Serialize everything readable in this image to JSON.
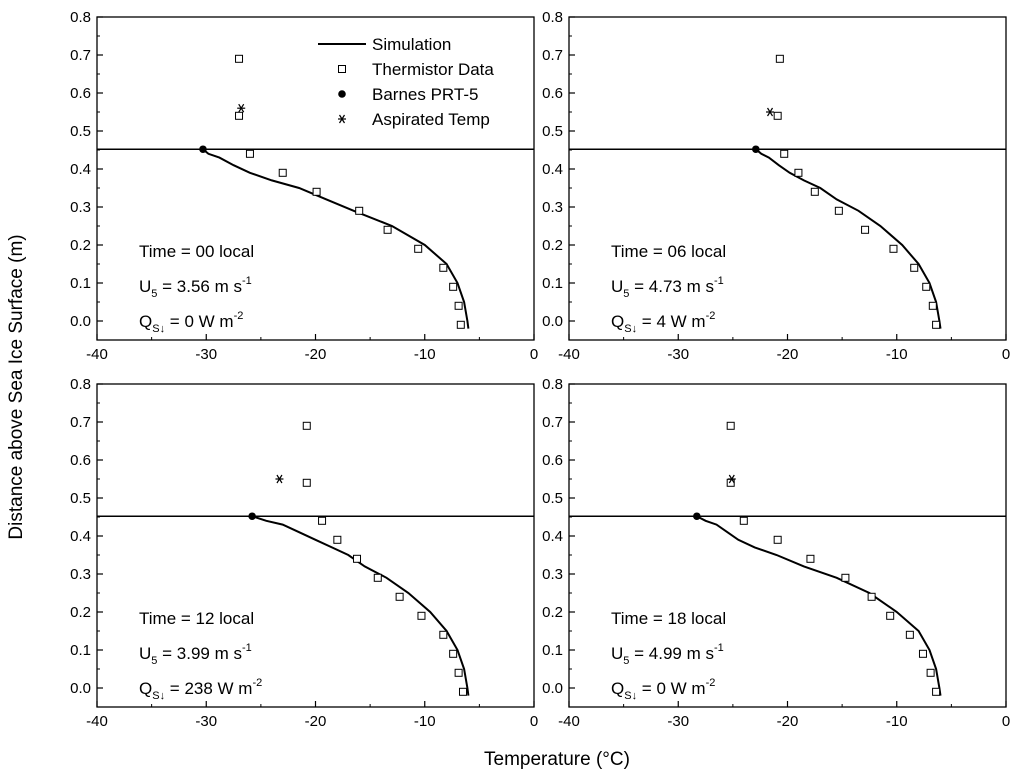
{
  "figure": {
    "xlabel": "Temperature (°C)",
    "ylabel": "Distance above Sea Ice Surface (m)"
  },
  "legend": {
    "position": "top-right of upper-left panel",
    "items": [
      {
        "label": "Simulation",
        "marker": "line"
      },
      {
        "label": "Thermistor Data",
        "marker": "open-square"
      },
      {
        "label": "Barnes PRT-5",
        "marker": "filled-circle"
      },
      {
        "label": "Aspirated Temp",
        "marker": "asterisk"
      }
    ]
  },
  "chart_data": [
    {
      "type": "scatter",
      "panel": "upper-left",
      "xlim": [
        -40,
        0
      ],
      "ylim": [
        -0.05,
        0.8
      ],
      "xticks": [
        -40,
        -30,
        -20,
        -10,
        0
      ],
      "xtick_labels": [
        "-40",
        "-30",
        "-20",
        "-10",
        "0"
      ],
      "yticks": [
        0.0,
        0.1,
        0.2,
        0.3,
        0.4,
        0.5,
        0.6,
        0.7,
        0.8
      ],
      "ytick_labels": [
        "0.0",
        "0.1",
        "0.2",
        "0.3",
        "0.4",
        "0.5",
        "0.6",
        "0.7",
        "0.8"
      ],
      "surface_line_y": 0.452,
      "annotation": {
        "time": "Time = 00 local",
        "u_value": "= 3.56 m s",
        "u_exp": "-1",
        "q_value": "= 0 W m",
        "q_exp": "-2"
      },
      "series": [
        {
          "name": "Simulation",
          "x": [
            -6.0,
            -6.1,
            -6.4,
            -7.0,
            -8.0,
            -10.0,
            -13.0,
            -16.5,
            -19.0,
            -21.5,
            -24.0,
            -26.0,
            -27.5,
            -28.8,
            -29.8,
            -30.3
          ],
          "y": [
            -0.02,
            0.0,
            0.05,
            0.1,
            0.15,
            0.2,
            0.25,
            0.29,
            0.32,
            0.35,
            0.37,
            0.39,
            0.41,
            0.43,
            0.44,
            0.452
          ]
        },
        {
          "name": "Thermistor Data",
          "x": [
            -6.7,
            -6.9,
            -7.4,
            -8.3,
            -10.6,
            -13.4,
            -16.0,
            -19.9,
            -23.0,
            -26.0,
            -27.0,
            -27.0
          ],
          "y": [
            -0.01,
            0.04,
            0.09,
            0.14,
            0.19,
            0.24,
            0.29,
            0.34,
            0.39,
            0.44,
            0.54,
            0.69
          ]
        },
        {
          "name": "Barnes PRT-5",
          "x": [
            -30.3
          ],
          "y": [
            0.452
          ]
        },
        {
          "name": "Aspirated Temp",
          "x": [
            -26.8
          ],
          "y": [
            0.56
          ]
        }
      ]
    },
    {
      "type": "scatter",
      "panel": "upper-right",
      "xlim": [
        -40,
        0
      ],
      "ylim": [
        -0.05,
        0.8
      ],
      "xticks": [
        -40,
        -30,
        -20,
        -10,
        0
      ],
      "xtick_labels": [
        "-40",
        "-30",
        "-20",
        "-10",
        "0"
      ],
      "yticks": [
        0.0,
        0.1,
        0.2,
        0.3,
        0.4,
        0.5,
        0.6,
        0.7,
        0.8
      ],
      "ytick_labels": [
        "0.0",
        "0.1",
        "0.2",
        "0.3",
        "0.4",
        "0.5",
        "0.6",
        "0.7",
        "0.8"
      ],
      "surface_line_y": 0.452,
      "annotation": {
        "time": "Time = 06 local",
        "u_value": "= 4.73 m s",
        "u_exp": "-1",
        "q_value": "= 4 W m",
        "q_exp": "-2"
      },
      "series": [
        {
          "name": "Simulation",
          "x": [
            -6.0,
            -6.1,
            -6.4,
            -7.0,
            -8.0,
            -9.5,
            -11.5,
            -13.5,
            -15.5,
            -17.0,
            -18.5,
            -19.8,
            -20.8,
            -21.7,
            -22.4,
            -22.9
          ],
          "y": [
            -0.02,
            0.0,
            0.05,
            0.1,
            0.15,
            0.2,
            0.25,
            0.29,
            0.32,
            0.35,
            0.37,
            0.39,
            0.41,
            0.43,
            0.44,
            0.452
          ]
        },
        {
          "name": "Thermistor Data",
          "x": [
            -6.4,
            -6.7,
            -7.3,
            -8.4,
            -10.3,
            -12.9,
            -15.3,
            -17.5,
            -19.0,
            -20.3,
            -20.9,
            -20.7
          ],
          "y": [
            -0.01,
            0.04,
            0.09,
            0.14,
            0.19,
            0.24,
            0.29,
            0.34,
            0.39,
            0.44,
            0.54,
            0.69
          ]
        },
        {
          "name": "Barnes PRT-5",
          "x": [
            -22.9
          ],
          "y": [
            0.452
          ]
        },
        {
          "name": "Aspirated Temp",
          "x": [
            -21.6
          ],
          "y": [
            0.55
          ]
        }
      ]
    },
    {
      "type": "scatter",
      "panel": "lower-left",
      "xlim": [
        -40,
        0
      ],
      "ylim": [
        -0.05,
        0.8
      ],
      "xticks": [
        -40,
        -30,
        -20,
        -10,
        0
      ],
      "xtick_labels": [
        "-40",
        "-30",
        "-20",
        "-10",
        "0"
      ],
      "yticks": [
        0.0,
        0.1,
        0.2,
        0.3,
        0.4,
        0.5,
        0.6,
        0.7,
        0.8
      ],
      "ytick_labels": [
        "0.0",
        "0.1",
        "0.2",
        "0.3",
        "0.4",
        "0.5",
        "0.6",
        "0.7",
        "0.8"
      ],
      "surface_line_y": 0.452,
      "annotation": {
        "time": "Time = 12 local",
        "u_value": "= 3.99 m s",
        "u_exp": "-1",
        "q_value": "= 238 W m",
        "q_exp": "-2"
      },
      "series": [
        {
          "name": "Simulation",
          "x": [
            -6.0,
            -6.1,
            -6.4,
            -7.0,
            -8.0,
            -9.5,
            -11.5,
            -13.5,
            -15.5,
            -17.0,
            -18.5,
            -20.0,
            -21.5,
            -23.0,
            -24.5,
            -25.8
          ],
          "y": [
            -0.02,
            0.0,
            0.05,
            0.1,
            0.15,
            0.2,
            0.25,
            0.29,
            0.32,
            0.35,
            0.37,
            0.39,
            0.41,
            0.43,
            0.44,
            0.452
          ]
        },
        {
          "name": "Thermistor Data",
          "x": [
            -6.5,
            -6.9,
            -7.4,
            -8.3,
            -10.3,
            -12.3,
            -14.3,
            -16.2,
            -18.0,
            -19.4,
            -20.8,
            -20.8
          ],
          "y": [
            -0.01,
            0.04,
            0.09,
            0.14,
            0.19,
            0.24,
            0.29,
            0.34,
            0.39,
            0.44,
            0.54,
            0.69
          ]
        },
        {
          "name": "Barnes PRT-5",
          "x": [
            -25.8
          ],
          "y": [
            0.452
          ]
        },
        {
          "name": "Aspirated Temp",
          "x": [
            -23.3
          ],
          "y": [
            0.55
          ]
        }
      ]
    },
    {
      "type": "scatter",
      "panel": "lower-right",
      "xlim": [
        -40,
        0
      ],
      "ylim": [
        -0.05,
        0.8
      ],
      "xticks": [
        -40,
        -30,
        -20,
        -10,
        0
      ],
      "xtick_labels": [
        "-40",
        "-30",
        "-20",
        "-10",
        "0"
      ],
      "yticks": [
        0.0,
        0.1,
        0.2,
        0.3,
        0.4,
        0.5,
        0.6,
        0.7,
        0.8
      ],
      "ytick_labels": [
        "0.0",
        "0.1",
        "0.2",
        "0.3",
        "0.4",
        "0.5",
        "0.6",
        "0.7",
        "0.8"
      ],
      "surface_line_y": 0.452,
      "annotation": {
        "time": "Time = 18 local",
        "u_value": "= 4.99 m s",
        "u_exp": "-1",
        "q_value": "= 0 W m",
        "q_exp": "-2"
      },
      "series": [
        {
          "name": "Simulation",
          "x": [
            -6.0,
            -6.1,
            -6.4,
            -7.0,
            -8.0,
            -10.0,
            -12.5,
            -15.5,
            -18.5,
            -21.0,
            -23.0,
            -24.5,
            -25.5,
            -26.5,
            -27.5,
            -28.3
          ],
          "y": [
            -0.02,
            0.0,
            0.05,
            0.1,
            0.15,
            0.2,
            0.25,
            0.29,
            0.32,
            0.35,
            0.37,
            0.39,
            0.41,
            0.43,
            0.44,
            0.452
          ]
        },
        {
          "name": "Thermistor Data",
          "x": [
            -6.4,
            -6.9,
            -7.6,
            -8.8,
            -10.6,
            -12.3,
            -14.7,
            -17.9,
            -20.9,
            -24.0,
            -25.2,
            -25.2
          ],
          "y": [
            -0.01,
            0.04,
            0.09,
            0.14,
            0.19,
            0.24,
            0.29,
            0.34,
            0.39,
            0.44,
            0.54,
            0.69
          ]
        },
        {
          "name": "Barnes PRT-5",
          "x": [
            -28.3
          ],
          "y": [
            0.452
          ]
        },
        {
          "name": "Aspirated Temp",
          "x": [
            -25.1
          ],
          "y": [
            0.55
          ]
        }
      ]
    }
  ]
}
